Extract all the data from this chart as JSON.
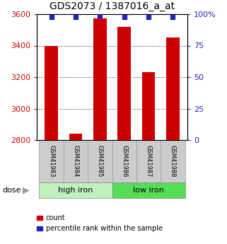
{
  "title": "GDS2073 / 1387016_a_at",
  "samples": [
    "GSM41983",
    "GSM41984",
    "GSM41985",
    "GSM41986",
    "GSM41987",
    "GSM41988"
  ],
  "counts": [
    3400,
    2840,
    3575,
    3520,
    3230,
    3450
  ],
  "percentiles": [
    98,
    98,
    99,
    98,
    98,
    98
  ],
  "group_labels": [
    "high iron",
    "low iron"
  ],
  "group_colors": [
    "#c0f0c0",
    "#55dd55"
  ],
  "ylim_left": [
    2800,
    3600
  ],
  "ylim_right": [
    0,
    100
  ],
  "yticks_left": [
    2800,
    3000,
    3200,
    3400,
    3600
  ],
  "yticks_right": [
    0,
    25,
    50,
    75,
    100
  ],
  "bar_color": "#cc0000",
  "dot_color": "#2222bb",
  "left_tick_color": "#cc0000",
  "right_tick_color": "#2222bb",
  "title_fontsize": 10,
  "tick_fontsize": 8,
  "sample_fontsize": 6,
  "group_fontsize": 8,
  "legend_fontsize": 7,
  "dose_label": "dose",
  "legend_count": "count",
  "legend_percentile": "percentile rank within the sample",
  "sample_box_color": "#cccccc",
  "gridline_ticks": [
    3000,
    3200,
    3400
  ],
  "n_high_iron": 3,
  "n_low_iron": 3
}
